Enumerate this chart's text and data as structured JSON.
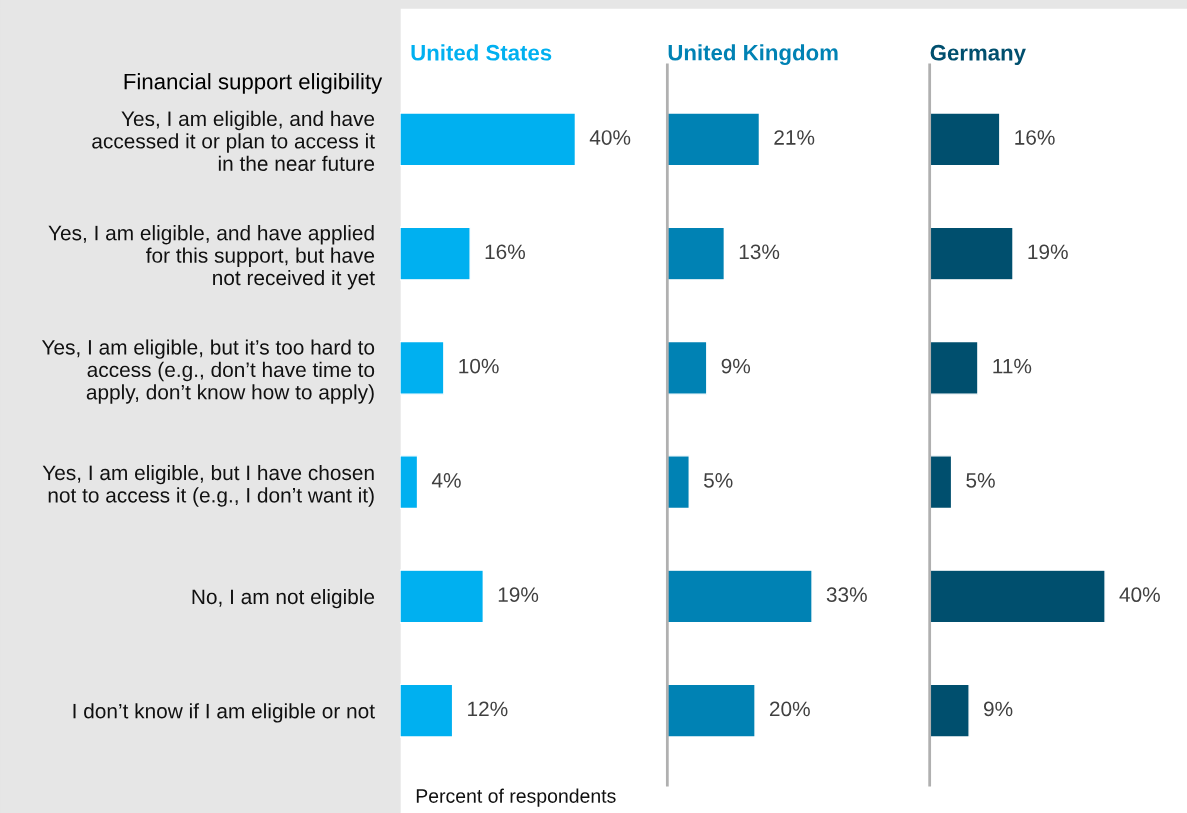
{
  "chart_data": [
    {
      "type": "bar",
      "orientation": "horizontal",
      "title": "United States",
      "ylabel": "Financial support eligibility",
      "xlabel": "Percent of respondents",
      "tick_labels": "y",
      "data_labels": true,
      "value_labels": [
        "40%",
        "16%",
        "10%",
        "4%",
        "19%",
        "12%"
      ],
      "categories": [
        "Yes, I am eligible, and have\naccessed it or plan to access it\nin the near future",
        "Yes, I am eligible, and have applied\nfor this support, but have\nnot received it yet",
        "Yes, I am eligible, but it’s too hard to\naccess (e.g., don’t have time to\napply, don’t know how to apply)",
        "Yes, I am eligible, but I have chosen\nnot to access it (e.g., I don’t want it)",
        "No, I am not eligible",
        "I don’t know if I am eligible or not"
      ],
      "values": [
        40,
        16,
        10,
        4,
        19,
        12
      ],
      "color": "#00b0f0"
    },
    {
      "type": "bar",
      "orientation": "horizontal",
      "title": "United Kingdom",
      "tick_labels": false,
      "data_labels": true,
      "value_labels": [
        "21%",
        "13%",
        "9%",
        "5%",
        "33%",
        "20%"
      ],
      "categories": [
        null,
        null,
        null,
        null,
        null,
        null
      ],
      "values": [
        21,
        13,
        9,
        5,
        33,
        20
      ],
      "color": "#0082b4"
    },
    {
      "type": "bar",
      "orientation": "horizontal",
      "title": "Germany",
      "tick_labels": false,
      "data_labels": true,
      "value_labels": [
        "16%",
        "19%",
        "11%",
        "5%",
        "40%",
        "9%"
      ],
      "categories": [
        null,
        null,
        null,
        null,
        null,
        null
      ],
      "values": [
        16,
        19,
        11,
        5,
        40,
        9
      ],
      "color": "#004f6e"
    }
  ]
}
